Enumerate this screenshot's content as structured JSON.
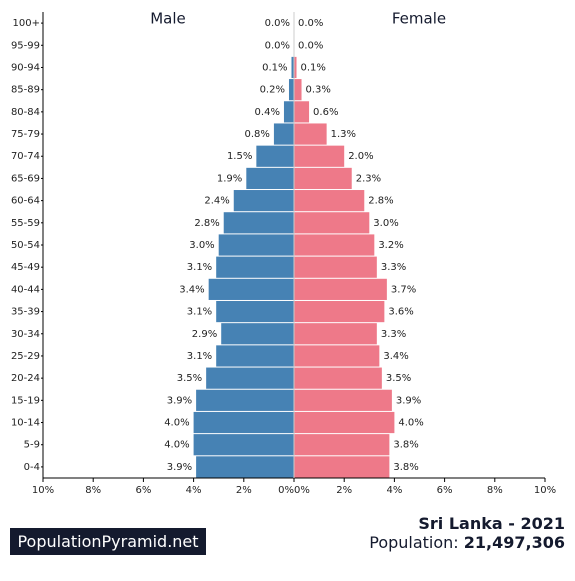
{
  "chart_data": {
    "type": "population_pyramid",
    "left_label": "Male",
    "right_label": "Female",
    "age_groups": [
      "100+",
      "95-99",
      "90-94",
      "85-89",
      "80-84",
      "75-79",
      "70-74",
      "65-69",
      "60-64",
      "55-59",
      "50-54",
      "45-49",
      "40-44",
      "35-39",
      "30-34",
      "25-29",
      "20-24",
      "15-19",
      "10-14",
      "5-9",
      "0-4"
    ],
    "series": [
      {
        "name": "Male",
        "values": [
          0.0,
          0.0,
          0.1,
          0.2,
          0.4,
          0.8,
          1.5,
          1.9,
          2.4,
          2.8,
          3.0,
          3.1,
          3.4,
          3.1,
          2.9,
          3.1,
          3.5,
          3.9,
          4.0,
          4.0,
          3.9
        ],
        "value_labels": [
          "0.0%",
          "0.0%",
          "0.1%",
          "0.2%",
          "0.4%",
          "0.8%",
          "1.5%",
          "1.9%",
          "2.4%",
          "2.8%",
          "3.0%",
          "3.1%",
          "3.4%",
          "3.1%",
          "2.9%",
          "3.1%",
          "3.5%",
          "3.9%",
          "4.0%",
          "4.0%",
          "3.9%"
        ]
      },
      {
        "name": "Female",
        "values": [
          0.0,
          0.0,
          0.1,
          0.3,
          0.6,
          1.3,
          2.0,
          2.3,
          2.8,
          3.0,
          3.2,
          3.3,
          3.7,
          3.6,
          3.3,
          3.4,
          3.5,
          3.9,
          4.0,
          3.8,
          3.8
        ],
        "value_labels": [
          "0.0%",
          "0.0%",
          "0.1%",
          "0.3%",
          "0.6%",
          "1.3%",
          "2.0%",
          "2.3%",
          "2.8%",
          "3.0%",
          "3.2%",
          "3.3%",
          "3.7%",
          "3.6%",
          "3.3%",
          "3.4%",
          "3.5%",
          "3.9%",
          "4.0%",
          "3.8%",
          "3.8%"
        ]
      }
    ],
    "x_ticks": [
      "10%",
      "8%",
      "6%",
      "4%",
      "2%",
      "0%",
      "0%",
      "2%",
      "4%",
      "6%",
      "8%",
      "10%"
    ],
    "x_max_percent": 10,
    "colors": {
      "male": "#4682b4",
      "female": "#ee7989"
    }
  },
  "branding": {
    "site": "PopulationPyramid.net"
  },
  "summary": {
    "title": "Sri Lanka - 2021",
    "population_label": "Population: ",
    "population_value": "21,497,306"
  }
}
